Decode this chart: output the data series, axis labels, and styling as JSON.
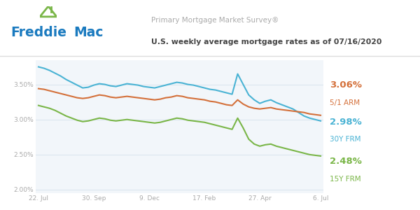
{
  "title_line1": "Primary Mortgage Market Survey®",
  "title_line2": "U.S. weekly average mortgage rates as of 07/16/2020",
  "bg_color": "#ffffff",
  "plot_bg_color": "#f2f6fa",
  "grid_color": "#dce6ef",
  "color_30y": "#4ab3d4",
  "color_5y": "#d4703a",
  "color_15y": "#7ab648",
  "x_labels": [
    "22. Jul",
    "30. Sep",
    "9. Dec",
    "17. Feb",
    "27. Apr",
    "6. Jul"
  ],
  "ylim": [
    1.95,
    3.85
  ],
  "yticks": [
    2.0,
    2.5,
    3.0,
    3.5
  ],
  "ytick_labels": [
    "2.00%",
    "2.50%",
    "3.00%",
    "3.50%"
  ],
  "freddie_color": "#1a7abf",
  "house_color": "#7ab648",
  "separator_color": "#dddddd",
  "title1_color": "#aaaaaa",
  "title2_color": "#444444"
}
